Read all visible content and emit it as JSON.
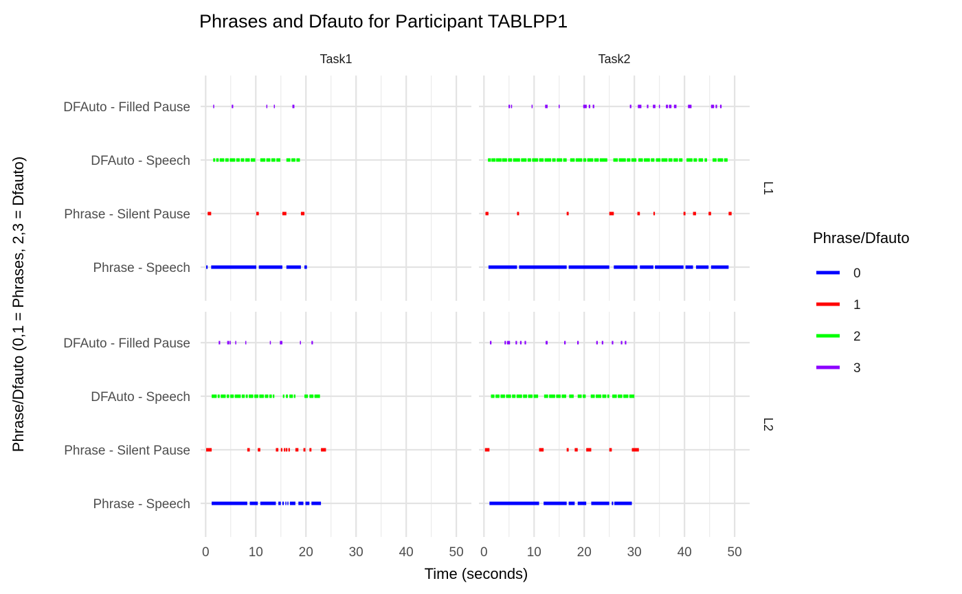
{
  "chart_data": {
    "type": "timeline",
    "title": "Phrases and Dfauto for Participant TABLPP1",
    "xlabel": "Time (seconds)",
    "ylabel": "Phrase/Dfauto (0,1 = Phrases, 2,3 = Dfauto)",
    "xlim": [
      -1,
      53
    ],
    "x_ticks": [
      0,
      10,
      20,
      30,
      40,
      50
    ],
    "x_tick_labels": [
      "0",
      "10",
      "20",
      "30",
      "40",
      "50"
    ],
    "grid": true,
    "columns": [
      "Task1",
      "Task2"
    ],
    "rows": [
      "L1",
      "L2"
    ],
    "categories": [
      "Phrase - Speech",
      "Phrase - Silent Pause",
      "DFAuto - Speech",
      "DFAuto - Filled Pause"
    ],
    "legend": {
      "title": "Phrase/Dfauto",
      "position": "right",
      "items": [
        {
          "label": "0",
          "color": "#0000ff"
        },
        {
          "label": "1",
          "color": "#ff0000"
        },
        {
          "label": "2",
          "color": "#00ff00"
        },
        {
          "label": "3",
          "color": "#8b00ff"
        }
      ]
    },
    "panels": [
      {
        "row": "L1",
        "column": "Task1",
        "series": [
          {
            "code": "0",
            "category": "Phrase - Speech",
            "segments": [
              [
                0.1,
                0.4
              ],
              [
                1.1,
                10.1
              ],
              [
                10.6,
                15.3
              ],
              [
                16.1,
                19.0
              ],
              [
                19.7,
                20.2
              ]
            ]
          },
          {
            "code": "1",
            "category": "Phrase - Silent Pause",
            "segments": [
              [
                0.4,
                1.1
              ],
              [
                10.1,
                10.6
              ],
              [
                15.3,
                16.1
              ],
              [
                19.0,
                19.7
              ]
            ]
          },
          {
            "code": "2",
            "category": "DFAuto - Speech",
            "segments": [
              [
                1.5,
                1.9
              ],
              [
                2.1,
                2.6
              ],
              [
                2.8,
                3.7
              ],
              [
                3.9,
                4.6
              ],
              [
                4.8,
                5.9
              ],
              [
                6.1,
                6.8
              ],
              [
                7.0,
                7.7
              ],
              [
                7.9,
                8.8
              ],
              [
                9.0,
                9.9
              ],
              [
                10.9,
                11.9
              ],
              [
                12.1,
                12.9
              ],
              [
                13.1,
                13.9
              ],
              [
                14.1,
                14.9
              ],
              [
                16.1,
                16.9
              ],
              [
                17.1,
                17.9
              ],
              [
                18.1,
                18.8
              ]
            ]
          },
          {
            "code": "3",
            "category": "DFAuto - Filled Pause",
            "segments": [
              [
                1.5,
                1.6
              ],
              [
                5.2,
                5.5
              ],
              [
                12.1,
                12.2
              ],
              [
                13.6,
                13.8
              ],
              [
                17.3,
                17.7
              ]
            ]
          }
        ]
      },
      {
        "row": "L1",
        "column": "Task2",
        "series": [
          {
            "code": "0",
            "category": "Phrase - Speech",
            "segments": [
              [
                0.9,
                6.6
              ],
              [
                7.0,
                16.5
              ],
              [
                16.9,
                25.0
              ],
              [
                25.9,
                30.6
              ],
              [
                31.1,
                33.8
              ],
              [
                34.1,
                39.8
              ],
              [
                40.2,
                41.7
              ],
              [
                42.3,
                44.8
              ],
              [
                45.3,
                48.8
              ]
            ]
          },
          {
            "code": "1",
            "category": "Phrase - Silent Pause",
            "segments": [
              [
                0.3,
                0.9
              ],
              [
                6.6,
                7.0
              ],
              [
                16.5,
                16.9
              ],
              [
                25.0,
                25.9
              ],
              [
                30.6,
                31.1
              ],
              [
                33.8,
                34.1
              ],
              [
                39.8,
                40.2
              ],
              [
                41.7,
                42.3
              ],
              [
                44.8,
                45.3
              ],
              [
                48.8,
                49.4
              ]
            ]
          },
          {
            "code": "2",
            "category": "DFAuto - Speech",
            "segments": [
              [
                0.8,
                1.4
              ],
              [
                1.5,
                2.3
              ],
              [
                2.4,
                3.5
              ],
              [
                3.6,
                4.6
              ],
              [
                4.8,
                5.6
              ],
              [
                5.8,
                7.2
              ],
              [
                7.4,
                8.5
              ],
              [
                8.7,
                9.4
              ],
              [
                9.6,
                10.8
              ],
              [
                11.0,
                11.9
              ],
              [
                12.1,
                13.4
              ],
              [
                13.6,
                14.3
              ],
              [
                14.5,
                15.6
              ],
              [
                15.8,
                16.5
              ],
              [
                17.2,
                18.1
              ],
              [
                18.3,
                19.6
              ],
              [
                19.8,
                20.4
              ],
              [
                20.6,
                21.8
              ],
              [
                22.0,
                22.9
              ],
              [
                23.1,
                24.6
              ],
              [
                25.8,
                26.7
              ],
              [
                26.9,
                28.3
              ],
              [
                28.5,
                29.2
              ],
              [
                29.4,
                30.4
              ],
              [
                30.8,
                31.7
              ],
              [
                31.9,
                33.1
              ],
              [
                33.3,
                34.0
              ],
              [
                34.3,
                35.2
              ],
              [
                35.4,
                36.6
              ],
              [
                36.8,
                37.6
              ],
              [
                37.8,
                38.7
              ],
              [
                38.9,
                39.6
              ],
              [
                40.4,
                41.6
              ],
              [
                41.8,
                42.5
              ],
              [
                42.8,
                43.7
              ],
              [
                44.0,
                44.5
              ],
              [
                45.6,
                46.4
              ],
              [
                46.6,
                47.7
              ],
              [
                47.9,
                48.6
              ]
            ]
          },
          {
            "code": "3",
            "category": "DFAuto - Filled Pause",
            "segments": [
              [
                4.9,
                5.2
              ],
              [
                5.4,
                5.6
              ],
              [
                9.5,
                9.7
              ],
              [
                12.2,
                12.7
              ],
              [
                14.9,
                15.1
              ],
              [
                19.8,
                20.5
              ],
              [
                20.9,
                21.2
              ],
              [
                21.7,
                22.0
              ],
              [
                29.1,
                29.4
              ],
              [
                30.7,
                31.4
              ],
              [
                32.5,
                32.8
              ],
              [
                33.7,
                34.2
              ],
              [
                34.9,
                35.1
              ],
              [
                36.3,
                36.7
              ],
              [
                36.9,
                37.4
              ],
              [
                37.9,
                38.4
              ],
              [
                40.7,
                41.4
              ],
              [
                45.3,
                45.9
              ],
              [
                46.2,
                46.5
              ],
              [
                47.1,
                47.4
              ]
            ]
          }
        ]
      },
      {
        "row": "L2",
        "column": "Task1",
        "series": [
          {
            "code": "0",
            "category": "Phrase - Speech",
            "segments": [
              [
                1.2,
                8.3
              ],
              [
                8.8,
                10.4
              ],
              [
                10.9,
                14.0
              ],
              [
                14.5,
                15.0
              ],
              [
                15.3,
                15.6
              ],
              [
                15.9,
                16.0
              ],
              [
                16.3,
                16.5
              ],
              [
                16.8,
                17.9
              ],
              [
                18.5,
                19.5
              ],
              [
                19.9,
                20.7
              ],
              [
                21.1,
                23.0
              ]
            ]
          },
          {
            "code": "1",
            "category": "Phrase - Silent Pause",
            "segments": [
              [
                0.1,
                1.2
              ],
              [
                8.3,
                8.8
              ],
              [
                10.4,
                10.9
              ],
              [
                14.0,
                14.5
              ],
              [
                15.0,
                15.3
              ],
              [
                15.6,
                15.9
              ],
              [
                16.0,
                16.3
              ],
              [
                16.5,
                16.8
              ],
              [
                17.9,
                18.5
              ],
              [
                19.5,
                19.9
              ],
              [
                20.7,
                21.1
              ],
              [
                23.0,
                24.0
              ]
            ]
          },
          {
            "code": "2",
            "category": "DFAuto - Speech",
            "segments": [
              [
                1.2,
                2.2
              ],
              [
                2.4,
                2.8
              ],
              [
                3.0,
                4.0
              ],
              [
                4.2,
                4.7
              ],
              [
                4.9,
                5.6
              ],
              [
                5.8,
                7.0
              ],
              [
                7.2,
                7.8
              ],
              [
                8.0,
                8.4
              ],
              [
                8.6,
                9.5
              ],
              [
                9.7,
                10.5
              ],
              [
                10.7,
                11.6
              ],
              [
                11.8,
                12.5
              ],
              [
                12.7,
                13.2
              ],
              [
                13.4,
                13.7
              ],
              [
                15.4,
                15.7
              ],
              [
                16.0,
                16.4
              ],
              [
                16.7,
                17.4
              ],
              [
                17.6,
                17.9
              ],
              [
                19.7,
                20.4
              ],
              [
                20.7,
                21.5
              ],
              [
                21.7,
                22.8
              ]
            ]
          },
          {
            "code": "3",
            "category": "DFAuto - Filled Pause",
            "segments": [
              [
                2.6,
                2.9
              ],
              [
                4.3,
                4.7
              ],
              [
                4.8,
                5.0
              ],
              [
                5.9,
                6.1
              ],
              [
                7.9,
                8.1
              ],
              [
                12.8,
                13.0
              ],
              [
                14.8,
                15.3
              ],
              [
                18.8,
                19.0
              ],
              [
                21.1,
                21.4
              ]
            ]
          }
        ]
      },
      {
        "row": "L2",
        "column": "Task2",
        "series": [
          {
            "code": "0",
            "category": "Phrase - Speech",
            "segments": [
              [
                1.1,
                11.0
              ],
              [
                11.9,
                16.5
              ],
              [
                16.9,
                18.1
              ],
              [
                18.7,
                20.4
              ],
              [
                21.4,
                25.0
              ],
              [
                25.5,
                25.8
              ],
              [
                26.0,
                29.5
              ]
            ]
          },
          {
            "code": "1",
            "category": "Phrase - Silent Pause",
            "segments": [
              [
                0.2,
                1.1
              ],
              [
                11.0,
                11.9
              ],
              [
                16.5,
                16.9
              ],
              [
                18.1,
                18.7
              ],
              [
                20.4,
                21.4
              ],
              [
                25.0,
                25.5
              ],
              [
                29.5,
                30.9
              ]
            ]
          },
          {
            "code": "2",
            "category": "DFAuto - Speech",
            "segments": [
              [
                1.4,
                2.1
              ],
              [
                2.3,
                3.1
              ],
              [
                3.3,
                4.2
              ],
              [
                4.4,
                5.4
              ],
              [
                5.6,
                6.3
              ],
              [
                6.5,
                7.6
              ],
              [
                7.8,
                8.6
              ],
              [
                8.8,
                9.7
              ],
              [
                9.9,
                10.8
              ],
              [
                12.0,
                12.8
              ],
              [
                13.0,
                14.2
              ],
              [
                14.4,
                15.3
              ],
              [
                15.5,
                16.4
              ],
              [
                17.0,
                17.9
              ],
              [
                18.7,
                19.5
              ],
              [
                19.7,
                20.3
              ],
              [
                21.3,
                22.1
              ],
              [
                22.3,
                23.4
              ],
              [
                23.6,
                24.4
              ],
              [
                24.6,
                25.0
              ],
              [
                25.6,
                26.5
              ],
              [
                26.7,
                27.6
              ],
              [
                27.8,
                28.8
              ],
              [
                29.0,
                30.0
              ]
            ]
          },
          {
            "code": "3",
            "category": "DFAuto - Filled Pause",
            "segments": [
              [
                1.2,
                1.5
              ],
              [
                4.1,
                4.4
              ],
              [
                4.6,
                5.2
              ],
              [
                6.3,
                6.6
              ],
              [
                7.2,
                7.5
              ],
              [
                8.1,
                8.4
              ],
              [
                12.3,
                12.7
              ],
              [
                16.0,
                16.3
              ],
              [
                18.6,
                18.9
              ],
              [
                22.4,
                22.7
              ],
              [
                23.5,
                23.8
              ],
              [
                25.5,
                25.8
              ],
              [
                27.3,
                27.6
              ],
              [
                28.1,
                28.4
              ]
            ]
          }
        ]
      }
    ]
  }
}
